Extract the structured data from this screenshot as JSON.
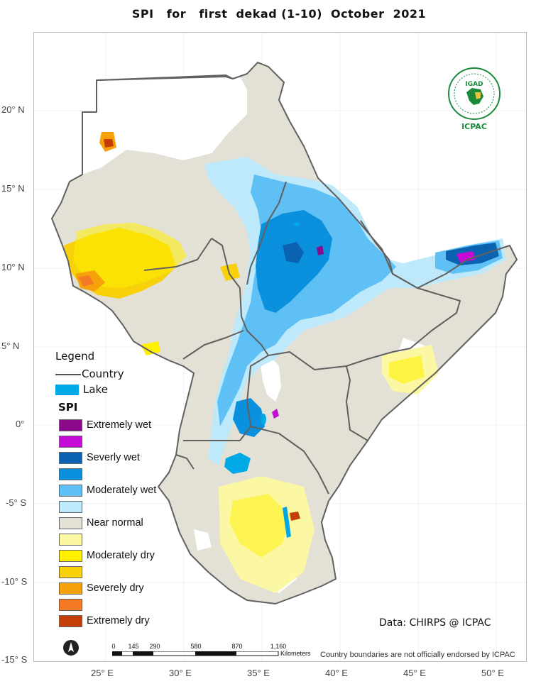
{
  "title": "SPI   for   first  dekad (1-10)  October  2021",
  "map": {
    "lat_labels": [
      "20° N",
      "15° N",
      "10° N",
      "5° N",
      "0°",
      "-5° S",
      "-10° S",
      "-15° S"
    ],
    "lon_labels": [
      "25° E",
      "30° E",
      "35° E",
      "40° E",
      "45° E",
      "50° E"
    ]
  },
  "legend": {
    "title": "Legend",
    "country_label": "Country",
    "lake_label": "Lake",
    "spi_title": "SPI",
    "spi_classes": [
      {
        "label": "Extremely wet",
        "color": "#8a0a8a"
      },
      {
        "label": "",
        "color": "#c40ad4"
      },
      {
        "label": "Severly wet",
        "color": "#0a62b0"
      },
      {
        "label": "",
        "color": "#0a90dc"
      },
      {
        "label": "Moderately wet",
        "color": "#5ec0f5"
      },
      {
        "label": "",
        "color": "#bde9fa"
      },
      {
        "label": "Near normal",
        "color": "#e3e0d6"
      },
      {
        "label": "",
        "color": "#fbf7a2"
      },
      {
        "label": "Moderately dry",
        "color": "#fff000"
      },
      {
        "label": "",
        "color": "#f8d10a"
      },
      {
        "label": "Severely dry",
        "color": "#f5a20a"
      },
      {
        "label": "",
        "color": "#f57a25"
      },
      {
        "label": "Extremely dry",
        "color": "#c43e0a"
      }
    ]
  },
  "credit": "Data: CHIRPS @ ICPAC",
  "disclaimer": "Country boundaries are not officially endorsed by ICPAC",
  "scalebar": {
    "ticks": [
      "0",
      "145",
      "290",
      "580",
      "870",
      "1,160"
    ],
    "units": "Kilometers"
  },
  "logo": {
    "name": "ICPAC",
    "badge": "IGAD"
  },
  "colors": {
    "country_border": "#606060",
    "lake": "#00a8e6",
    "frame": "#b9b9b9"
  }
}
